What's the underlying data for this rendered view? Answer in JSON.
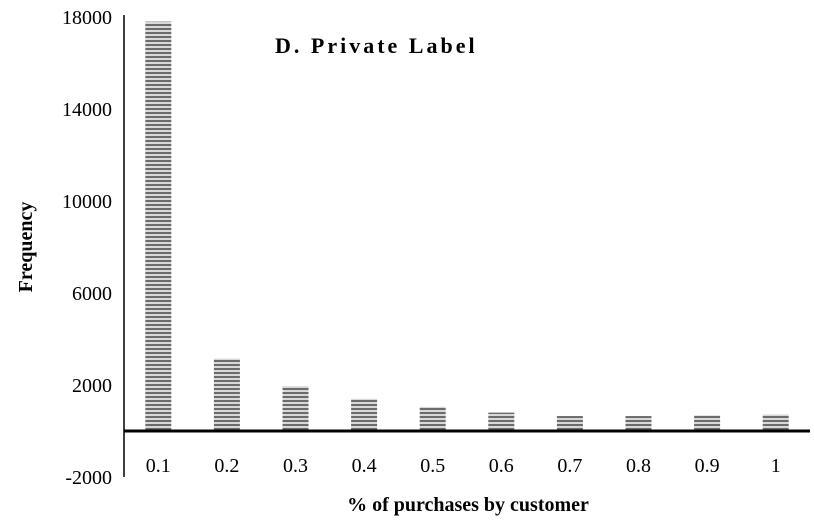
{
  "chart_data": {
    "type": "bar",
    "title": "D. Private Label",
    "xlabel": "% of purchases by customer",
    "ylabel": "Frequency",
    "categories": [
      "0.1",
      "0.2",
      "0.3",
      "0.4",
      "0.5",
      "0.6",
      "0.7",
      "0.8",
      "0.9",
      "1"
    ],
    "values": [
      17800,
      3150,
      1950,
      1400,
      1050,
      800,
      650,
      650,
      680,
      720
    ],
    "ylim": [
      -2000,
      18000
    ],
    "yticks": [
      "18000",
      "14000",
      "10000",
      "6000",
      "2000",
      "-2000"
    ],
    "grid": false,
    "legend": "none",
    "bar_fill": "horizontal-stripes",
    "colors": {
      "stripe_dark": "#6b6b6b",
      "stripe_light": "#d8d8d8",
      "axis": "#000000"
    }
  }
}
